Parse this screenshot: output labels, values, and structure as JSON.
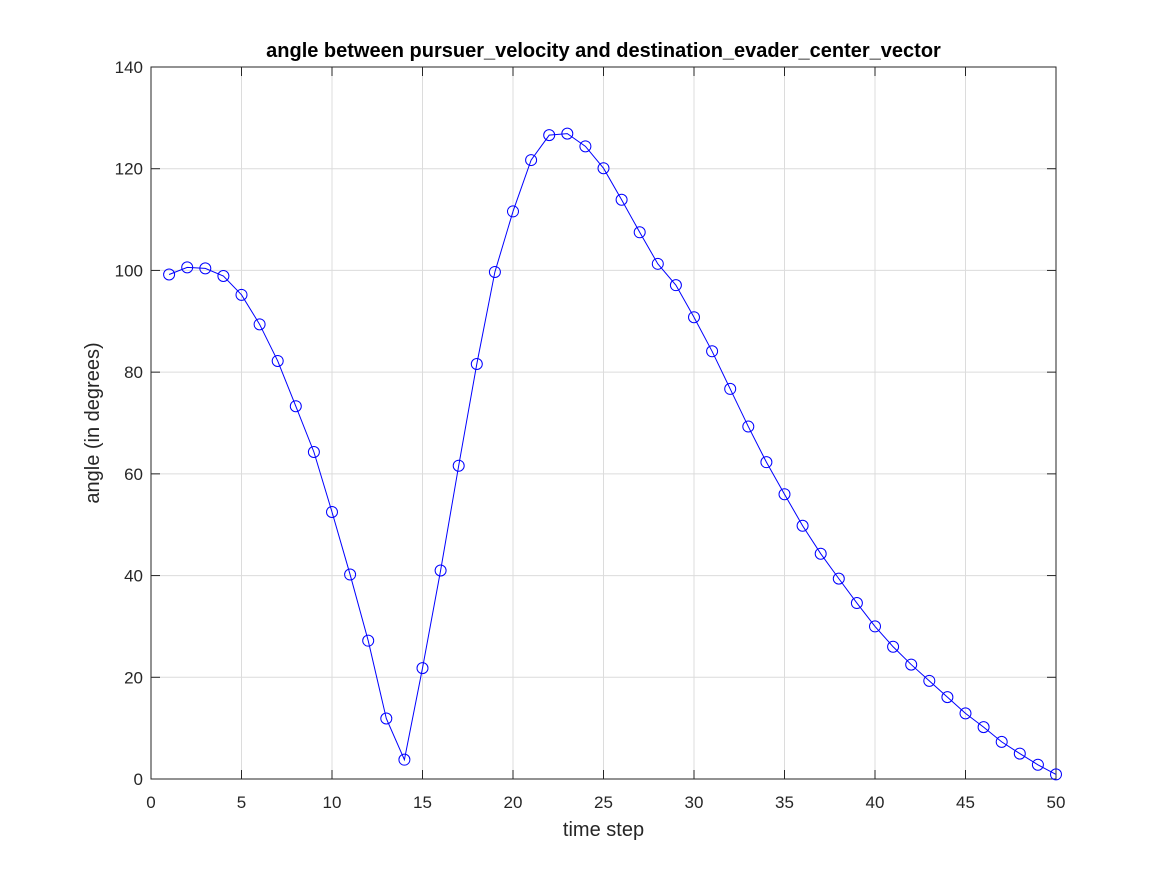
{
  "chart_data": {
    "type": "line",
    "title": "angle between pursuer_velocity and destination_evader_center_vector",
    "xlabel": "time step",
    "ylabel": "angle (in degrees)",
    "xlim": [
      0,
      50
    ],
    "ylim": [
      0,
      140
    ],
    "xticks": [
      0,
      5,
      10,
      15,
      20,
      25,
      30,
      35,
      40,
      45,
      50
    ],
    "yticks": [
      0,
      20,
      40,
      60,
      80,
      100,
      120,
      140
    ],
    "grid": true,
    "marker": "circle",
    "line_color": "#0000ff",
    "series": [
      {
        "x": [
          1,
          2,
          3,
          4,
          5,
          6,
          7,
          8,
          9,
          10,
          11,
          12,
          13,
          14,
          15,
          16,
          17,
          18,
          19,
          20,
          21,
          22,
          23,
          24,
          25,
          26,
          27,
          28,
          29,
          30,
          31,
          32,
          33,
          34,
          35,
          36,
          37,
          38,
          39,
          40,
          41,
          42,
          43,
          44,
          45,
          46,
          47,
          48,
          49,
          50
        ],
        "values": [
          99.2,
          100.6,
          100.4,
          98.9,
          95.2,
          89.4,
          82.2,
          73.3,
          64.3,
          52.5,
          40.2,
          27.2,
          11.9,
          3.8,
          21.8,
          41.0,
          61.6,
          81.6,
          99.7,
          111.6,
          121.7,
          126.6,
          126.9,
          124.4,
          120.1,
          113.9,
          107.5,
          101.3,
          97.1,
          90.8,
          84.1,
          76.7,
          69.3,
          62.3,
          56.0,
          49.8,
          44.3,
          39.4,
          34.6,
          30.0,
          26.0,
          22.5,
          19.3,
          16.1,
          12.9,
          10.2,
          7.3,
          5.0,
          2.8,
          0.9
        ]
      }
    ]
  }
}
